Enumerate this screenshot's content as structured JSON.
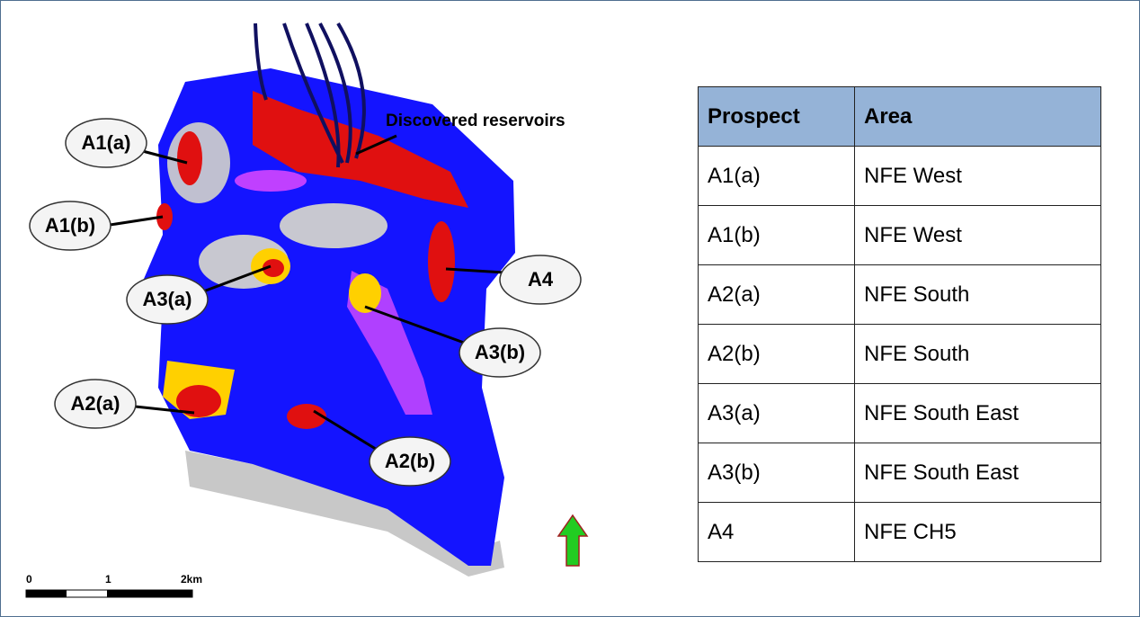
{
  "map": {
    "annotations": [
      "Discovered reservoirs"
    ],
    "callouts": [
      "A1(a)",
      "A1(b)",
      "A3(a)",
      "A4",
      "A3(b)",
      "A2(a)",
      "A2(b)"
    ],
    "scale_bar": {
      "labels": [
        "0",
        "1",
        "2km"
      ]
    }
  },
  "table": {
    "header": [
      "Prospect",
      "Area"
    ],
    "rows": [
      [
        "A1(a)",
        "NFE West"
      ],
      [
        "A1(b)",
        "NFE West"
      ],
      [
        "A2(a)",
        "NFE South"
      ],
      [
        "A2(b)",
        "NFE South"
      ],
      [
        "A3(a)",
        "NFE South East"
      ],
      [
        "A3(b)",
        "NFE South East"
      ],
      [
        "A4",
        "NFE CH5"
      ]
    ]
  }
}
